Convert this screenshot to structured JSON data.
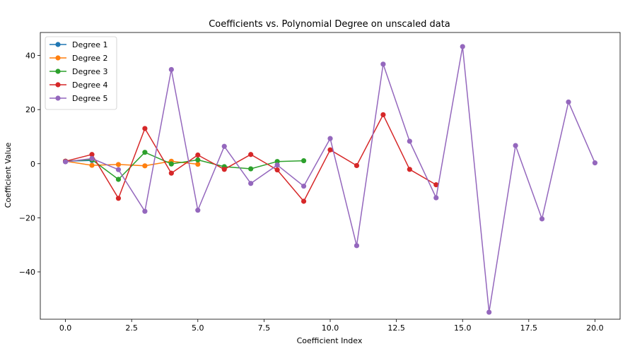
{
  "chart_data": {
    "type": "line",
    "title": "Coefficients vs. Polynomial Degree on unscaled data",
    "xlabel": "Coefficient Index",
    "ylabel": "Coefficient Value",
    "xlim": [
      -0.95,
      20.95
    ],
    "ylim": [
      -57.5,
      48.5
    ],
    "xticks": [
      0,
      2.5,
      5,
      7.5,
      10,
      12.5,
      15,
      17.5,
      20
    ],
    "xtick_labels": [
      "0.0",
      "2.5",
      "5.0",
      "7.5",
      "10.0",
      "12.5",
      "15.0",
      "17.5",
      "20.0"
    ],
    "yticks": [
      -40,
      -20,
      0,
      20,
      40
    ],
    "ytick_labels": [
      "−40",
      "−20",
      "0",
      "20",
      "40"
    ],
    "grid": false,
    "legend_position": "top-left",
    "series": [
      {
        "name": "Degree 1",
        "color": "#1f77b4",
        "x": [
          0,
          1
        ],
        "y": [
          0.9,
          1.2
        ]
      },
      {
        "name": "Degree 2",
        "color": "#ff7f0e",
        "x": [
          0,
          1,
          2,
          3,
          4,
          5
        ],
        "y": [
          0.9,
          -0.6,
          -0.3,
          -0.8,
          0.9,
          -0.2
        ]
      },
      {
        "name": "Degree 3",
        "color": "#2ca02c",
        "x": [
          0,
          1,
          2,
          3,
          4,
          5,
          6,
          7,
          8,
          9
        ],
        "y": [
          0.9,
          1.5,
          -5.8,
          4.2,
          -0.1,
          1.4,
          -1.1,
          -1.9,
          0.8,
          1.1
        ]
      },
      {
        "name": "Degree 4",
        "color": "#d62728",
        "x": [
          0,
          1,
          2,
          3,
          4,
          5,
          6,
          7,
          8,
          9,
          10,
          11,
          12,
          13,
          14
        ],
        "y": [
          0.9,
          3.4,
          -12.8,
          13.0,
          -3.5,
          3.2,
          -2.1,
          3.4,
          -2.3,
          -13.9,
          5.1,
          -0.7,
          18.1,
          -2.1,
          -7.8
        ]
      },
      {
        "name": "Degree 5",
        "color": "#9467bd",
        "x": [
          0,
          1,
          2,
          3,
          4,
          5,
          6,
          7,
          8,
          9,
          10,
          11,
          12,
          13,
          14,
          15,
          16,
          17,
          18,
          19,
          20
        ],
        "y": [
          0.7,
          1.9,
          -2.2,
          -17.6,
          34.8,
          -17.2,
          6.4,
          -7.3,
          -0.5,
          -8.3,
          9.3,
          -30.3,
          36.8,
          8.3,
          -12.6,
          43.3,
          -54.9,
          6.7,
          -20.4,
          22.8,
          0.3
        ]
      }
    ]
  }
}
